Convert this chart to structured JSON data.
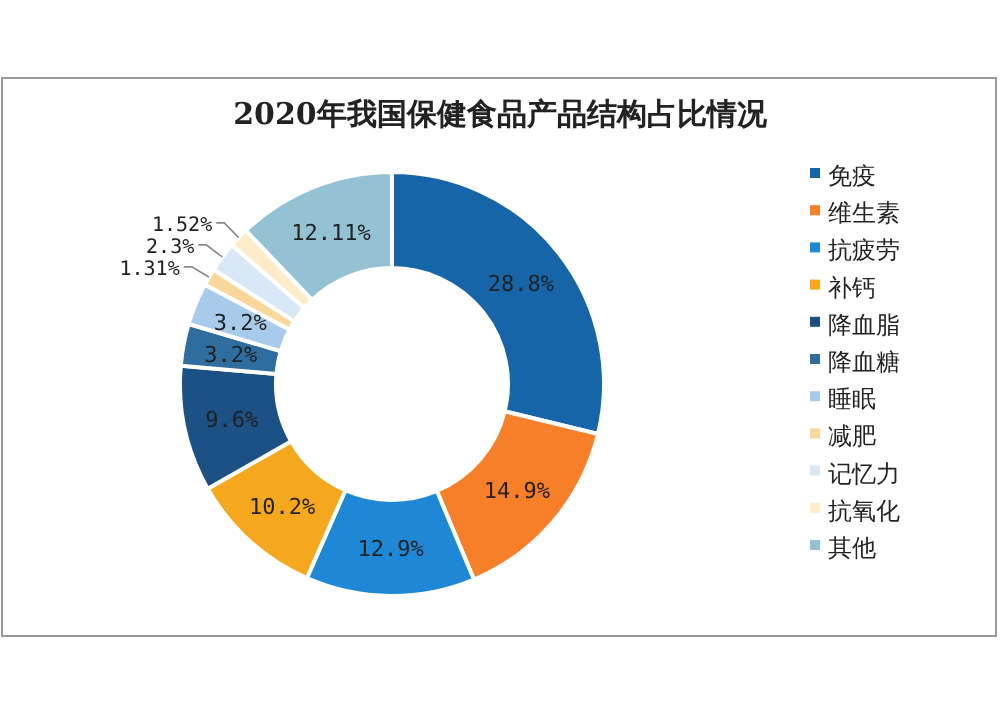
{
  "chart_data": {
    "type": "donut",
    "title": "2020年我国保健食品产品结构占比情况",
    "categories": [
      "免疫",
      "维生素",
      "抗疲劳",
      "补钙",
      "降血脂",
      "降血糖",
      "睡眠",
      "减肥",
      "记忆力",
      "抗氧化",
      "其他"
    ],
    "values": [
      28.8,
      14.9,
      12.9,
      10.2,
      9.6,
      3.2,
      3.2,
      1.31,
      2.3,
      1.52,
      12.11
    ],
    "value_labels": [
      "28.8%",
      "14.9%",
      "12.9%",
      "10.2%",
      "9.6%",
      "3.2%",
      "3.2%",
      "1.31%",
      "2.3%",
      "1.52%",
      "12.11%"
    ],
    "colors": [
      "#1665a9",
      "#f77f27",
      "#1f88d6",
      "#f5a81d",
      "#1b5185",
      "#2f6d9e",
      "#a9cbeb",
      "#f9d79b",
      "#d8e8f6",
      "#fdebc9",
      "#93c2d4"
    ],
    "legend": "right"
  }
}
